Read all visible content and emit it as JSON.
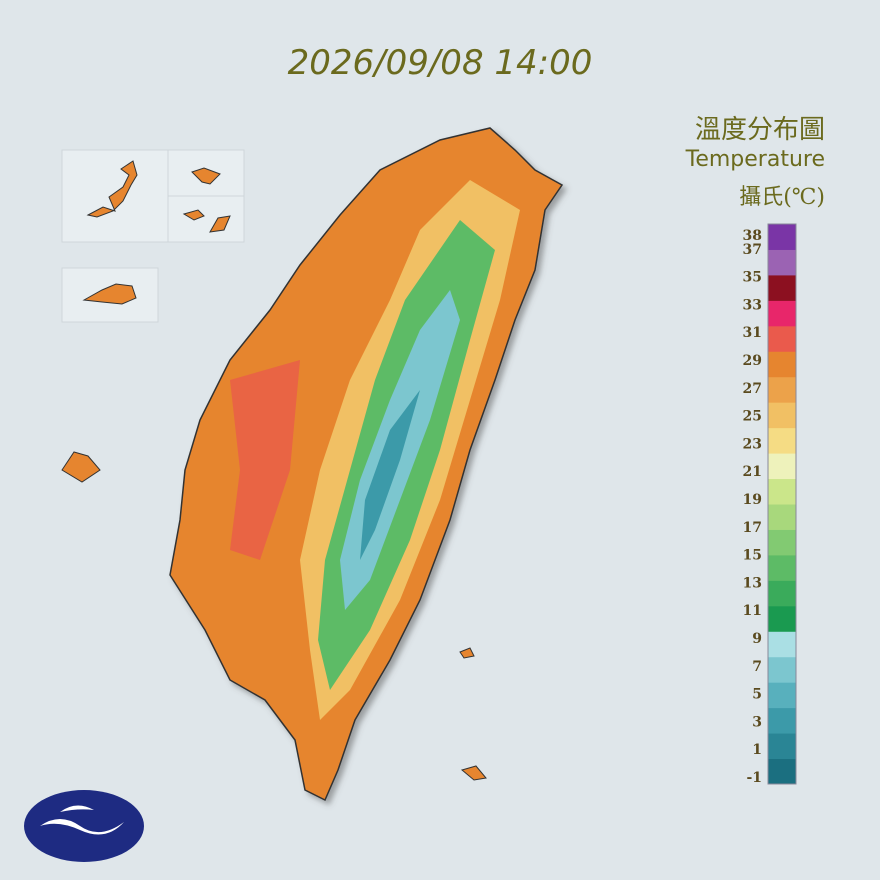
{
  "header": {
    "datetime": "2026/09/08 14:00"
  },
  "legend": {
    "title": "溫度分布圖",
    "subtitle": "Temperature",
    "unit": "攝氏(℃)",
    "labels": [
      38,
      37,
      35,
      33,
      31,
      29,
      27,
      25,
      23,
      21,
      19,
      17,
      15,
      13,
      11,
      9,
      7,
      5,
      3,
      1,
      -1
    ],
    "colors": [
      "#1b6f80",
      "#2a8595",
      "#3c9aa9",
      "#58b0bd",
      "#7cc6cf",
      "#aadfe4",
      "#1a9a50",
      "#3aab5b",
      "#5dbb66",
      "#82ca72",
      "#a8d87c",
      "#cbe68a",
      "#eef2bb",
      "#f5dc84",
      "#f1c064",
      "#eca24a",
      "#e6852f",
      "#ea5a4c",
      "#e8266a",
      "#8c1020",
      "#9b63b3",
      "#7a35a6"
    ]
  }
}
